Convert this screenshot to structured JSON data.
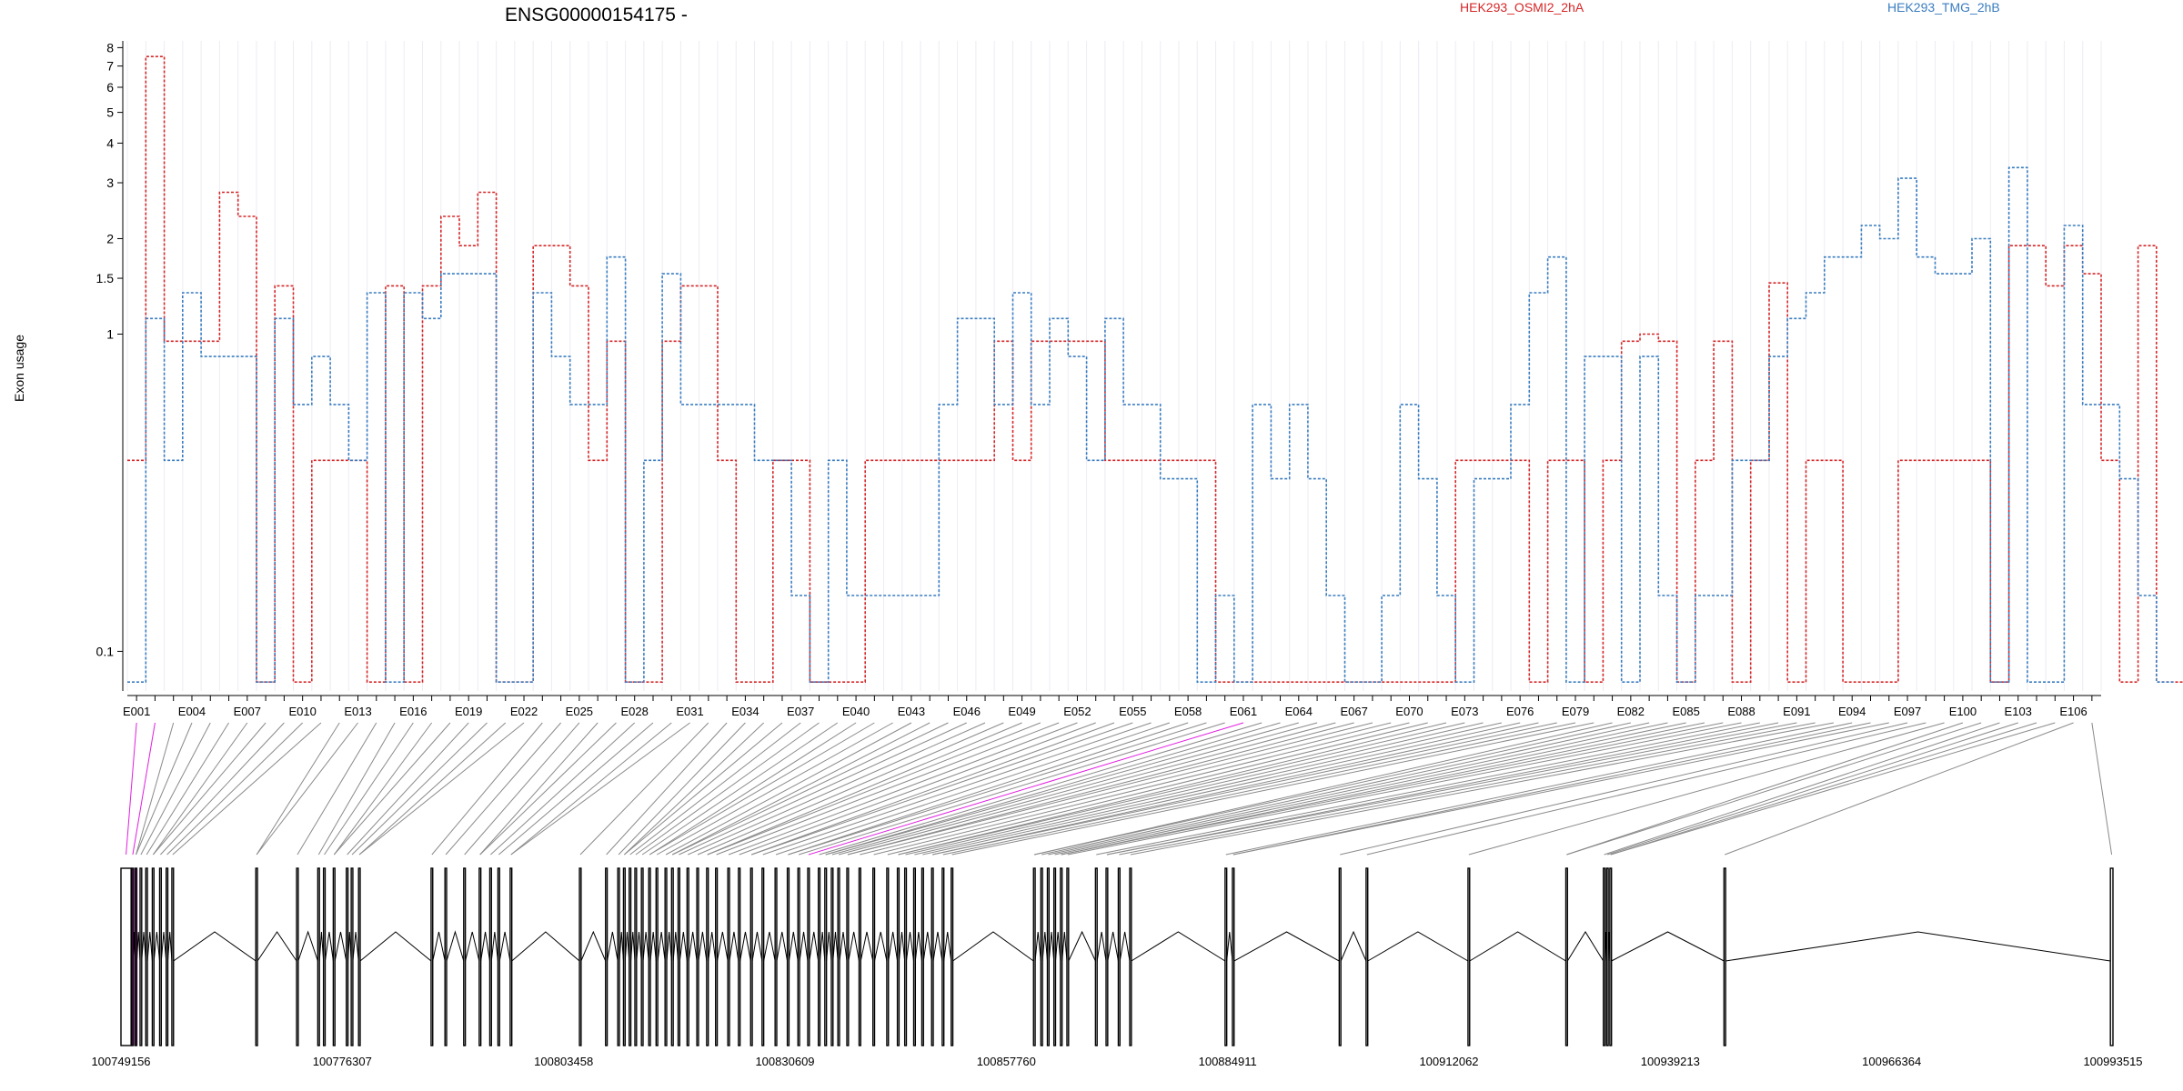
{
  "chart_data": {
    "type": "line",
    "title": "ENSG00000154175 -",
    "ylabel": "Exon usage",
    "yscale": "log",
    "ylim": [
      0.075,
      8.4
    ],
    "ytick_values": [
      0.1,
      1,
      1.5,
      2,
      3,
      4,
      5,
      6,
      7,
      8
    ],
    "ytick_labels": [
      "0.1",
      "1",
      "1.5",
      "2",
      "3",
      "4",
      "5",
      "6",
      "7",
      "8"
    ],
    "grid": true,
    "legend_position": "top",
    "series": [
      {
        "name": "HEK293_OSMI2_2hA",
        "color": "#d62728",
        "values": [
          0.4,
          7.5,
          0.95,
          0.95,
          0.95,
          2.8,
          2.35,
          0.08,
          1.42,
          0.08,
          0.4,
          0.4,
          0.4,
          0.08,
          1.42,
          0.08,
          1.42,
          2.35,
          1.9,
          2.8,
          0.08,
          0.08,
          1.9,
          1.9,
          1.42,
          0.4,
          0.95,
          0.08,
          0.08,
          0.95,
          1.42,
          1.42,
          0.4,
          0.08,
          0.08,
          0.4,
          0.4,
          0.08,
          0.08,
          0.08,
          0.4,
          0.4,
          0.4,
          0.4,
          0.4,
          0.4,
          0.4,
          0.95,
          0.4,
          0.95,
          0.95,
          0.95,
          0.95,
          0.4,
          0.4,
          0.4,
          0.4,
          0.4,
          0.4,
          0.08,
          0.08,
          0.08,
          0.08,
          0.08,
          0.08,
          0.08,
          0.08,
          0.08,
          0.08,
          0.08,
          0.08,
          0.08,
          0.4,
          0.4,
          0.4,
          0.4,
          0.08,
          0.4,
          0.4,
          0.08,
          0.4,
          0.95,
          1.0,
          0.95,
          0.08,
          0.4,
          0.95,
          0.08,
          0.4,
          1.45,
          0.08,
          0.4,
          0.4,
          0.08,
          0.08,
          0.08,
          0.4,
          0.4,
          0.4,
          0.4,
          0.4,
          0.08,
          1.9,
          1.9,
          1.42,
          1.9,
          1.55,
          0.4,
          0.08,
          1.9,
          0.08,
          0.08,
          0.4,
          0.4,
          0.4,
          0.4,
          0.08,
          0.08
        ]
      },
      {
        "name": "HEK293_TMG_2hB",
        "color": "#3a7dc0",
        "values": [
          0.08,
          1.12,
          0.4,
          1.35,
          0.85,
          0.85,
          0.85,
          0.08,
          1.12,
          0.6,
          0.85,
          0.6,
          0.4,
          1.35,
          0.08,
          1.35,
          1.12,
          1.55,
          1.55,
          1.55,
          0.08,
          0.08,
          1.35,
          0.85,
          0.6,
          0.6,
          1.75,
          0.08,
          0.4,
          1.55,
          0.6,
          0.6,
          0.6,
          0.6,
          0.4,
          0.4,
          0.15,
          0.08,
          0.4,
          0.15,
          0.15,
          0.15,
          0.15,
          0.15,
          0.6,
          1.12,
          1.12,
          0.6,
          1.35,
          0.6,
          1.12,
          0.85,
          0.4,
          1.12,
          0.6,
          0.6,
          0.35,
          0.35,
          0.08,
          0.15,
          0.08,
          0.6,
          0.35,
          0.6,
          0.35,
          0.15,
          0.08,
          0.08,
          0.15,
          0.6,
          0.35,
          0.15,
          0.08,
          0.35,
          0.35,
          0.6,
          1.35,
          1.75,
          0.08,
          0.85,
          0.85,
          0.08,
          0.85,
          0.15,
          0.08,
          0.15,
          0.15,
          0.4,
          0.4,
          0.85,
          1.12,
          1.35,
          1.75,
          1.75,
          2.2,
          2.0,
          3.1,
          1.75,
          1.55,
          1.55,
          2.0,
          0.08,
          3.35,
          0.08,
          0.08,
          2.2,
          0.6,
          0.6,
          0.35,
          0.15,
          0.08
        ]
      }
    ],
    "exon_count": 107,
    "exon_tick_labels": [
      "E001",
      "E004",
      "E007",
      "E010",
      "E013",
      "E016",
      "E019",
      "E022",
      "E025",
      "E028",
      "E031",
      "E034",
      "E037",
      "E040",
      "E043",
      "E046",
      "E049",
      "E052",
      "E055",
      "E058",
      "E061",
      "E064",
      "E067",
      "E070",
      "E073",
      "E076",
      "E079",
      "E082",
      "E085",
      "E088",
      "E091",
      "E094",
      "E097",
      "E100",
      "E103",
      "E106"
    ],
    "gene_model": {
      "start": 100749156,
      "end": 100993515,
      "coordinate_labels": [
        "100749156",
        "100776307",
        "100803458",
        "100830609",
        "100857760",
        "100884911",
        "100912062",
        "100939213",
        "100966364",
        "100993515"
      ],
      "highlight_color": "#e020e0",
      "highlighted_exons": [
        1,
        2
      ],
      "exons": [
        [
          100749156,
          100750400
        ],
        [
          100750500,
          100750700
        ],
        [
          100750900,
          100751100
        ],
        [
          100751500,
          100751700
        ],
        [
          100752200,
          100752400
        ],
        [
          100753000,
          100753200
        ],
        [
          100753900,
          100754100
        ],
        [
          100754700,
          100754900
        ],
        [
          100755400,
          100755600
        ],
        [
          100765700,
          100765900
        ],
        [
          100770700,
          100770900
        ],
        [
          100773300,
          100773500
        ],
        [
          100774000,
          100774200
        ],
        [
          100775200,
          100775400
        ],
        [
          100776800,
          100777000
        ],
        [
          100777400,
          100777600
        ],
        [
          100778300,
          100778500
        ],
        [
          100787200,
          100787400
        ],
        [
          100788900,
          100789100
        ],
        [
          100791200,
          100791400
        ],
        [
          100793100,
          100793300
        ],
        [
          100794400,
          100794600
        ],
        [
          100795400,
          100795600
        ],
        [
          100796900,
          100797100
        ],
        [
          100805400,
          100805600
        ],
        [
          100808600,
          100808800
        ],
        [
          100810100,
          100810300
        ],
        [
          100810800,
          100811000
        ],
        [
          100811500,
          100811700
        ],
        [
          100812200,
          100812400
        ],
        [
          100813000,
          100813200
        ],
        [
          100813900,
          100814100
        ],
        [
          100814800,
          100815000
        ],
        [
          100815900,
          100816100
        ],
        [
          100816700,
          100816900
        ],
        [
          100817500,
          100817700
        ],
        [
          100818600,
          100818800
        ],
        [
          100819800,
          100820000
        ],
        [
          100821000,
          100821200
        ],
        [
          100822100,
          100822300
        ],
        [
          100823600,
          100823800
        ],
        [
          100824900,
          100825100
        ],
        [
          100826400,
          100826600
        ],
        [
          100827800,
          100828000
        ],
        [
          100829400,
          100829600
        ],
        [
          100830900,
          100831100
        ],
        [
          100832200,
          100832400
        ],
        [
          100833400,
          100833600
        ],
        [
          100834700,
          100834900
        ],
        [
          100835500,
          100835700
        ],
        [
          100836300,
          100836500
        ],
        [
          100837100,
          100837300
        ],
        [
          100838200,
          100838400
        ],
        [
          100839700,
          100839900
        ],
        [
          100841400,
          100841600
        ],
        [
          100843100,
          100843300
        ],
        [
          100844400,
          100844600
        ],
        [
          100845300,
          100845500
        ],
        [
          100846400,
          100846600
        ],
        [
          100847400,
          100847600
        ],
        [
          100848600,
          100848800
        ],
        [
          100849900,
          100850100
        ],
        [
          100851000,
          100851200
        ],
        [
          100861100,
          100861300
        ],
        [
          100862000,
          100862200
        ],
        [
          100862800,
          100863000
        ],
        [
          100863600,
          100863800
        ],
        [
          100864400,
          100864600
        ],
        [
          100865200,
          100865400
        ],
        [
          100868700,
          100868900
        ],
        [
          100870000,
          100870200
        ],
        [
          100871500,
          100871700
        ],
        [
          100872900,
          100873100
        ],
        [
          100884600,
          100884800
        ],
        [
          100885500,
          100885700
        ],
        [
          100898600,
          100898800
        ],
        [
          100901900,
          100902100
        ],
        [
          100914400,
          100914600
        ],
        [
          100926400,
          100926600
        ],
        [
          100931000,
          100931200
        ],
        [
          100931400,
          100931600
        ],
        [
          100931800,
          100932000
        ],
        [
          100945800,
          100946000
        ],
        [
          100993200,
          100993515
        ]
      ]
    }
  }
}
